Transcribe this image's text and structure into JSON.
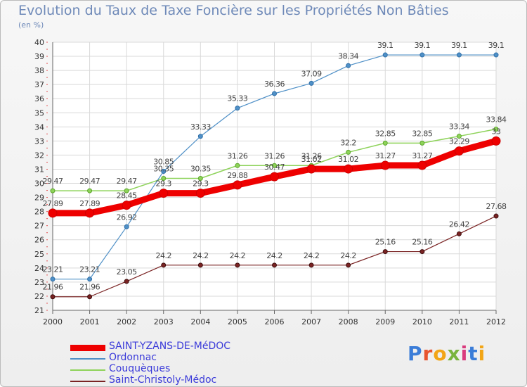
{
  "header": {
    "title": "Evolution du Taux de Taxe Foncière sur les Propriétés Non Bâties",
    "subtitle": "(en %)"
  },
  "logo": {
    "text": "Proxiti",
    "colors": [
      "#3b7dd8",
      "#e8542e",
      "#f2a516",
      "#79b43d",
      "#d93a7d",
      "#3b7dd8",
      "#f2a516"
    ]
  },
  "chart_data": {
    "type": "line",
    "x": [
      2000,
      2001,
      2002,
      2003,
      2004,
      2005,
      2006,
      2007,
      2008,
      2009,
      2010,
      2011,
      2012
    ],
    "ylim": [
      21,
      40
    ],
    "yticks": [
      21,
      22,
      23,
      24,
      25,
      26,
      27,
      28,
      29,
      30,
      31,
      32,
      33,
      34,
      35,
      36,
      37,
      38,
      39,
      40
    ],
    "grid": true,
    "legend_position": "bottom-left",
    "series": [
      {
        "name": "SAINT-YZANS-DE-MéDOC",
        "color": "#ee0000",
        "values": [
          27.89,
          27.89,
          28.45,
          29.3,
          29.3,
          29.88,
          30.47,
          31.02,
          31.02,
          31.27,
          31.27,
          32.29,
          33
        ],
        "labels": [
          "27.89",
          "27.89",
          "28.45",
          "29.3",
          "29.3",
          "29.88",
          "30.47",
          "31.02",
          "31.02",
          "31.27",
          "31.27",
          "32.29",
          "33"
        ]
      },
      {
        "name": "Ordonnac",
        "color": "#4f90c7",
        "values": [
          23.21,
          23.21,
          26.92,
          30.85,
          33.33,
          35.33,
          36.36,
          37.09,
          38.34,
          39.1,
          39.1,
          39.1,
          39.1
        ],
        "labels": [
          "23.21",
          "23.21",
          "26.92",
          "30.85",
          "33.33",
          "35.33",
          "36.36",
          "37.09",
          "38.34",
          "39.1",
          "39.1",
          "39.1",
          "39.1"
        ]
      },
      {
        "name": "Couquèques",
        "color": "#8ed35a",
        "values": [
          29.47,
          29.47,
          29.47,
          30.35,
          30.35,
          31.26,
          31.26,
          31.26,
          32.2,
          32.85,
          32.85,
          33.34,
          33.84
        ],
        "labels": [
          "29.47",
          "29.47",
          "29.47",
          "30.35",
          "30.35",
          "31.26",
          "31.26",
          "31.26",
          "32.2",
          "32.85",
          "32.85",
          "33.34",
          "33.84"
        ]
      },
      {
        "name": "Saint-Christoly-Médoc",
        "color": "#7a2323",
        "values": [
          21.96,
          21.96,
          23.05,
          24.2,
          24.2,
          24.2,
          24.2,
          24.2,
          24.2,
          25.16,
          25.16,
          26.42,
          27.68
        ],
        "labels": [
          "21.96",
          "21.96",
          "23.05",
          "24.2",
          "24.2",
          "24.2",
          "24.2",
          "24.2",
          "24.2",
          "25.16",
          "25.16",
          "26.42",
          "27.68"
        ]
      }
    ]
  }
}
